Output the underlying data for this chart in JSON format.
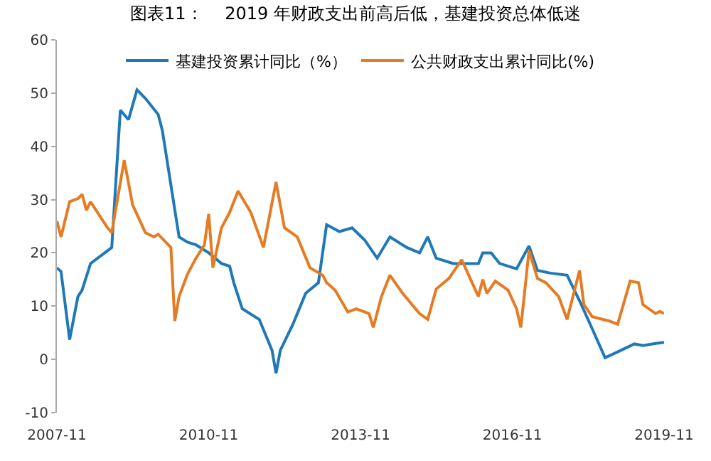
{
  "chart_data": {
    "type": "line",
    "title": "图表11：    2019 年财政支出前高后低，基建投资总体低迷",
    "series": [
      {
        "name": "基建投资累计同比（%）",
        "color": "#1f78b8",
        "x": [
          "2007-11",
          "2007-12",
          "2008-02",
          "2008-04",
          "2008-05",
          "2008-07",
          "2008-11",
          "2008-12",
          "2009-02",
          "2009-04",
          "2009-06",
          "2009-08",
          "2009-11",
          "2009-12",
          "2010-04",
          "2010-06",
          "2010-08",
          "2010-11",
          "2011-02",
          "2011-04",
          "2011-05",
          "2011-07",
          "2011-11",
          "2012-02",
          "2012-03",
          "2012-04",
          "2012-07",
          "2012-10",
          "2013-01",
          "2013-03",
          "2013-06",
          "2013-09",
          "2013-12",
          "2014-03",
          "2014-06",
          "2014-10",
          "2015-01",
          "2015-03",
          "2015-05",
          "2015-09",
          "2016-03",
          "2016-04",
          "2016-06",
          "2016-08",
          "2016-12",
          "2017-03",
          "2017-05",
          "2017-08",
          "2017-12",
          "2018-03",
          "2018-06",
          "2018-09",
          "2018-12",
          "2019-04",
          "2019-06",
          "2019-09",
          "2019-11"
        ],
        "values": [
          17.2,
          16.5,
          3.7,
          11.8,
          13,
          18,
          20.4,
          21,
          46.8,
          45,
          50.6,
          49,
          46,
          43,
          23,
          22,
          21.5,
          20,
          18,
          17.5,
          14.4,
          9.5,
          7.5,
          1.7,
          -2.6,
          1.7,
          6.6,
          12.4,
          14.4,
          25.3,
          24,
          24.7,
          22.4,
          19,
          23,
          21,
          20,
          23,
          19,
          18,
          18,
          20,
          20,
          18,
          17,
          21.3,
          16.7,
          16.2,
          15.8,
          11,
          5.7,
          0.3,
          1.4,
          2.9,
          2.6,
          3,
          3.2
        ]
      },
      {
        "name": "公共财政支出累计同比(%)",
        "color": "#e57b22",
        "x": [
          "2007-11",
          "2007-12",
          "2008-02",
          "2008-04",
          "2008-05",
          "2008-06",
          "2008-07",
          "2008-11",
          "2008-12",
          "2009-03",
          "2009-05",
          "2009-08",
          "2009-10",
          "2009-11",
          "2010-02",
          "2010-03",
          "2010-04",
          "2010-06",
          "2010-08",
          "2010-10",
          "2010-11",
          "2010-12",
          "2011-02",
          "2011-04",
          "2011-06",
          "2011-09",
          "2011-12",
          "2012-03",
          "2012-05",
          "2012-08",
          "2012-11",
          "2013-02",
          "2013-03",
          "2013-05",
          "2013-08",
          "2013-10",
          "2014-01",
          "2014-02",
          "2014-04",
          "2014-06",
          "2014-09",
          "2015-01",
          "2015-03",
          "2015-05",
          "2015-08",
          "2015-11",
          "2016-03",
          "2016-04",
          "2016-05",
          "2016-07",
          "2016-10",
          "2016-12",
          "2017-01",
          "2017-03",
          "2017-05",
          "2017-07",
          "2017-10",
          "2017-12",
          "2018-03",
          "2018-04",
          "2018-06",
          "2018-10",
          "2018-12",
          "2019-03",
          "2019-05",
          "2019-06",
          "2019-09",
          "2019-10",
          "2019-11"
        ],
        "values": [
          26,
          23,
          29.6,
          30.2,
          31,
          28,
          29.6,
          24.7,
          23.8,
          37.4,
          29,
          23.8,
          23,
          23.5,
          21,
          7.2,
          11.8,
          16,
          19,
          21.5,
          27.3,
          17.2,
          24.7,
          27.6,
          31.6,
          27.6,
          21,
          33.3,
          24.7,
          23,
          17.2,
          15.8,
          14.4,
          13,
          8.9,
          9.5,
          8.6,
          6,
          11.8,
          15.8,
          12.4,
          8.6,
          7.5,
          13.2,
          15.2,
          18.7,
          11.8,
          15,
          12.4,
          14.7,
          13,
          9.5,
          6,
          20.4,
          15.2,
          14.4,
          11.8,
          7.5,
          16.7,
          10.3,
          8,
          7.2,
          6.6,
          14.7,
          14.4,
          10.3,
          8.6,
          9,
          8.6
        ]
      }
    ],
    "xlim": [
      "2007-11",
      "2019-11"
    ],
    "xticks": [
      "2007-11",
      "2010-11",
      "2013-11",
      "2016-11",
      "2019-11"
    ],
    "ylim": [
      -10,
      60
    ],
    "yticks": [
      -10,
      0,
      10,
      20,
      30,
      40,
      50,
      60
    ],
    "legend": "top",
    "marker": "none",
    "line_style": "solid"
  }
}
